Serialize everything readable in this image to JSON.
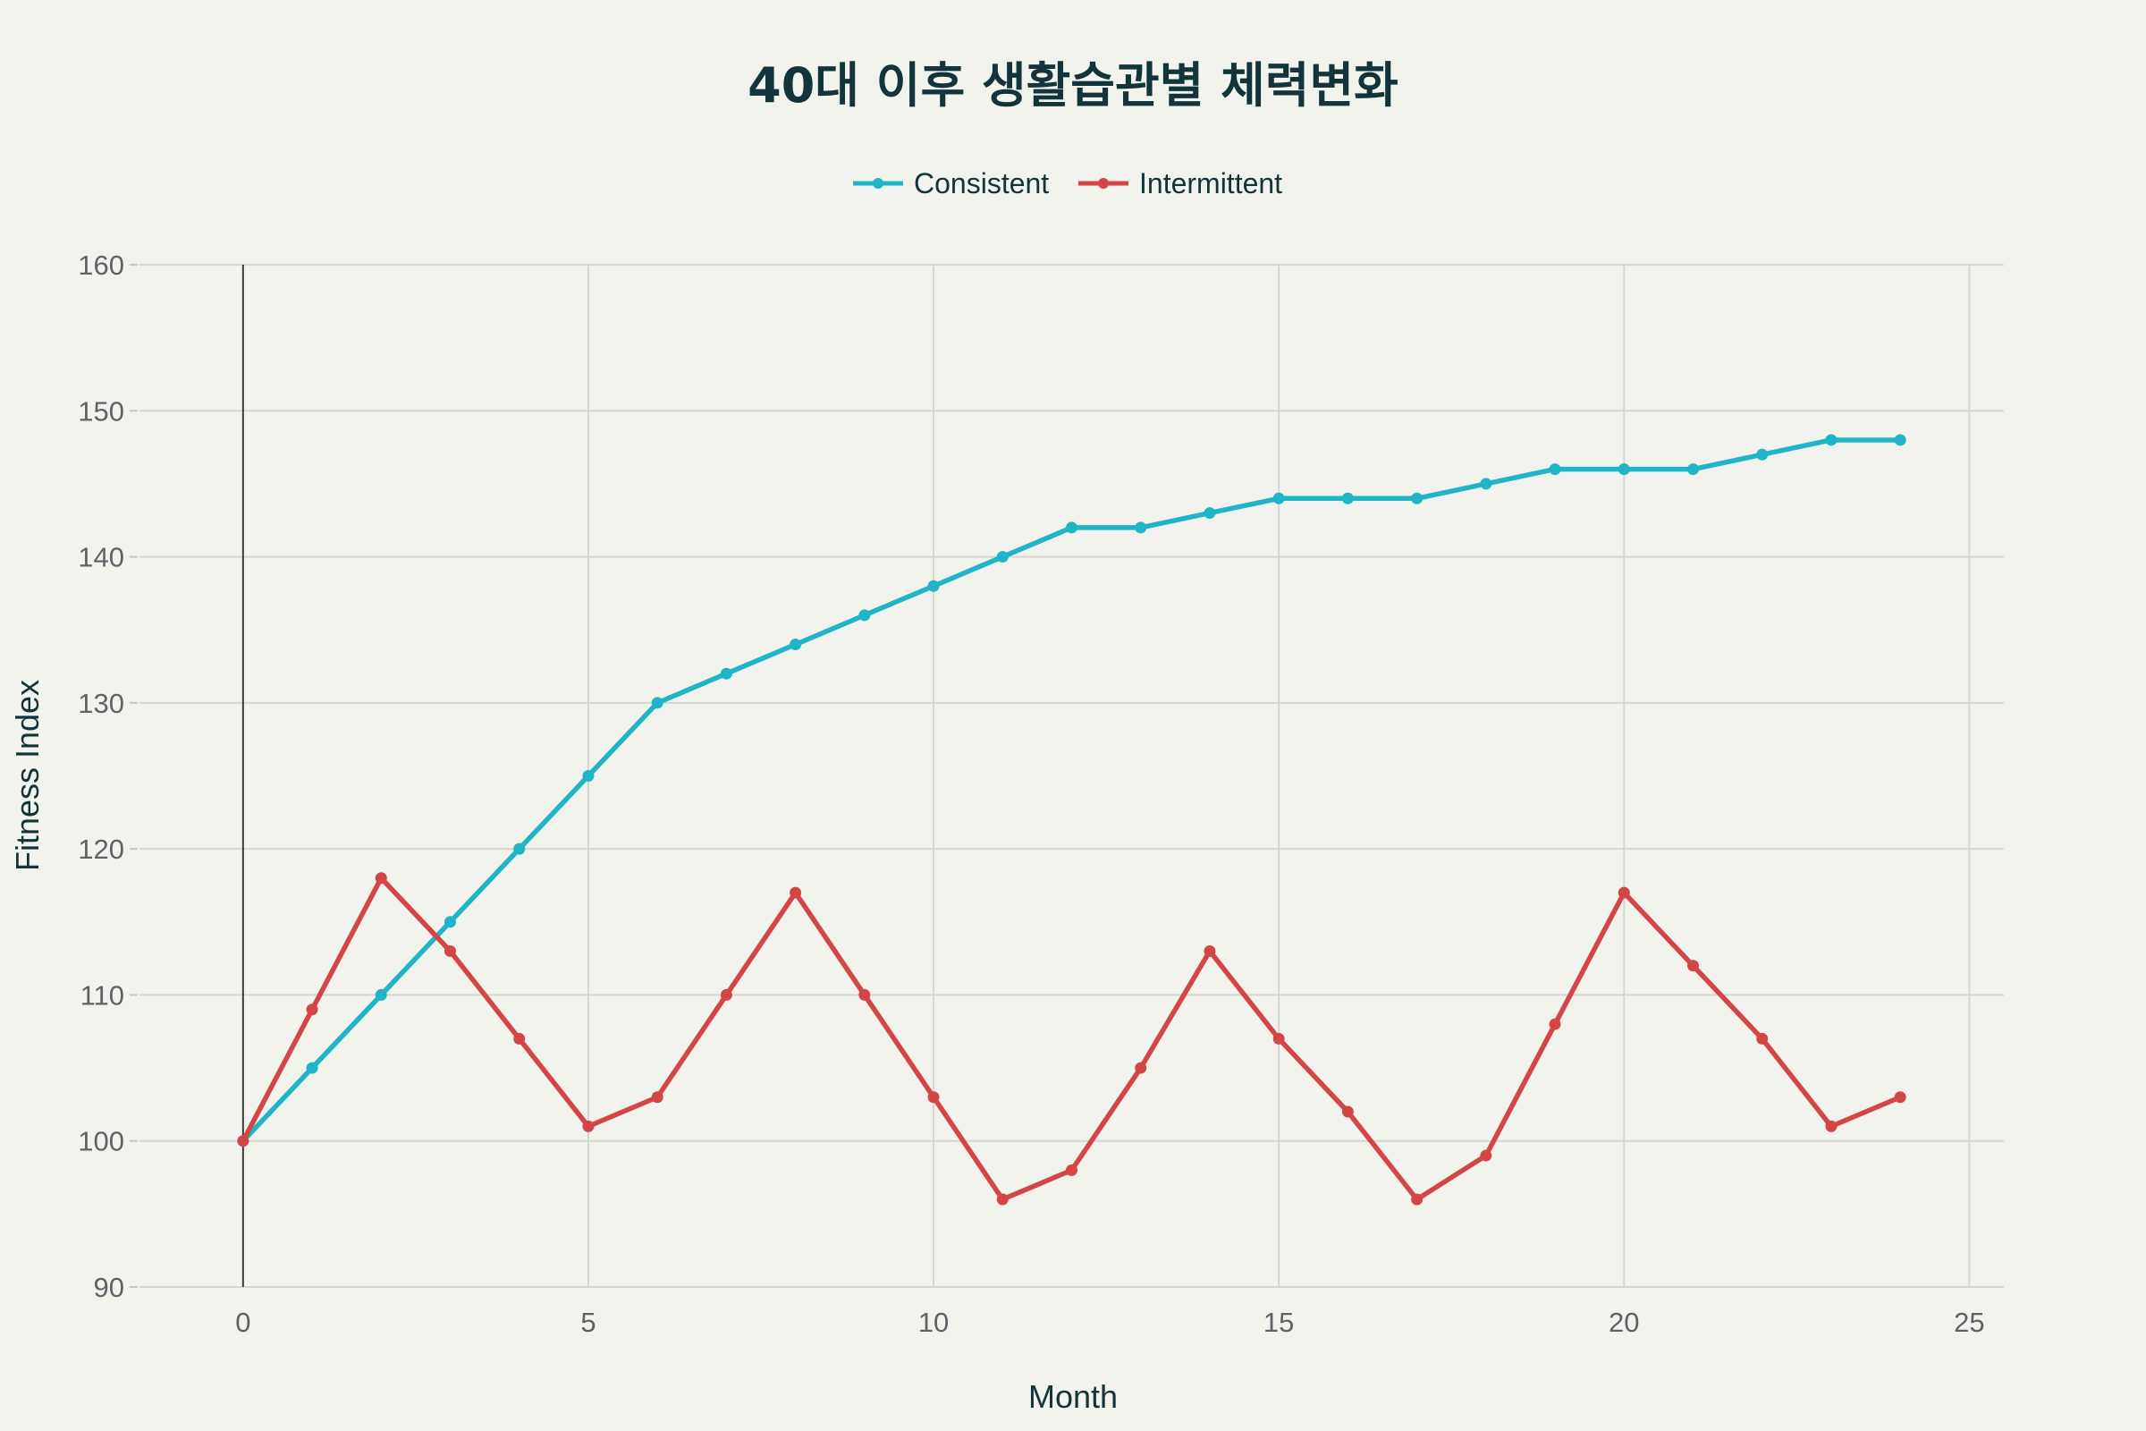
{
  "chart_data": {
    "type": "line",
    "title": "40대 이후 생활습관별 체력변화",
    "xlabel": "Month",
    "ylabel": "Fitness Index",
    "xlim": [
      -1.5,
      25.5
    ],
    "ylim": [
      90,
      160
    ],
    "x_ticks": [
      0,
      5,
      10,
      15,
      20,
      25
    ],
    "y_ticks": [
      90,
      100,
      110,
      120,
      130,
      140,
      150,
      160
    ],
    "grid": true,
    "legend_position": "top-center",
    "x": [
      0,
      1,
      2,
      3,
      4,
      5,
      6,
      7,
      8,
      9,
      10,
      11,
      12,
      13,
      14,
      15,
      16,
      17,
      18,
      19,
      20,
      21,
      22,
      23,
      24
    ],
    "series": [
      {
        "name": "Consistent",
        "color": "#1fb4c8",
        "values": [
          100,
          105,
          110,
          115,
          120,
          125,
          130,
          132,
          134,
          136,
          138,
          140,
          142,
          142,
          143,
          144,
          144,
          144,
          145,
          146,
          146,
          146,
          147,
          148,
          148
        ]
      },
      {
        "name": "Intermittent",
        "color": "#d44545",
        "values": [
          100,
          109,
          118,
          113,
          107,
          101,
          103,
          110,
          117,
          110,
          103,
          96,
          98,
          105,
          113,
          107,
          102,
          96,
          99,
          108,
          117,
          112,
          107,
          101,
          103
        ]
      }
    ]
  }
}
